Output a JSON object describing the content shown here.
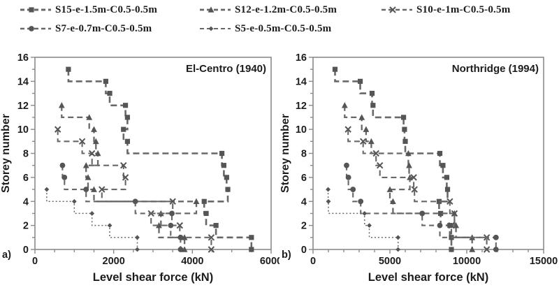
{
  "figure": {
    "colors": {
      "series": "#555555",
      "dash_line": "#686868",
      "axis": "#8a8a8a",
      "text": "#1c1c1c"
    },
    "legend": [
      {
        "label": "S15-e-1.5m-C0.5-0.5m",
        "marker": "square",
        "dash": "9,5",
        "width": 2.6
      },
      {
        "label": "S12-e-1.2m-C0.5-0.5m",
        "marker": "triangle",
        "dash": "8,5",
        "width": 2.3
      },
      {
        "label": "S10-e-1m-C0.5-0.5m",
        "marker": "x",
        "dash": "8,5",
        "width": 2.1
      },
      {
        "label": "S7-e-0.7m-C0.5-0.5m",
        "marker": "circle",
        "dash": "7,5",
        "width": 2.1
      },
      {
        "label": "S5-e-0.5m-C0.5-0.5m",
        "marker": "small-diamond",
        "dash": "2,3",
        "width": 1.5
      }
    ]
  },
  "chart_data": [
    {
      "type": "line",
      "subtype": "step-storey-shear-profile",
      "panel_label": "a)",
      "annotation": "El-Centro (1940)",
      "xlabel": "Level shear force (kN)",
      "ylabel": "Storey number",
      "xlim": [
        0,
        6000
      ],
      "xticks": [
        0,
        2000,
        4000,
        6000
      ],
      "xminor_step": 500,
      "ylim": [
        0,
        16
      ],
      "yticks": [
        0,
        2,
        4,
        6,
        8,
        10,
        12,
        14,
        16
      ],
      "yminor_step": 1,
      "grid": false,
      "legend_position": "top-outside",
      "series": [
        {
          "name": "S15-e-1.5m-C0.5-0.5m",
          "top_storey": 15,
          "values_top_to_1": [
            850,
            1800,
            1900,
            2300,
            2350,
            2250,
            2350,
            4750,
            4800,
            4870,
            4900,
            4300,
            4350,
            4600,
            5500
          ]
        },
        {
          "name": "S12-e-1.2m-C0.5-0.5m",
          "top_storey": 12,
          "values_top_to_1": [
            680,
            1380,
            1500,
            1550,
            1600,
            1300,
            1350,
            1500,
            4100,
            3200,
            3150,
            3800
          ]
        },
        {
          "name": "S10-e-1m-C0.5-0.5m",
          "top_storey": 10,
          "values_top_to_1": [
            580,
            1200,
            1450,
            2250,
            2300,
            1700,
            3500,
            2950,
            3680,
            4480
          ]
        },
        {
          "name": "S7-e-0.7m-C0.5-0.5m",
          "top_storey": 7,
          "values_top_to_1": [
            700,
            750,
            1300,
            2550,
            3480,
            3450,
            3700
          ]
        },
        {
          "name": "S5-e-0.5m-C0.5-0.5m",
          "top_storey": 5,
          "values_top_to_1": [
            300,
            1000,
            1450,
            1900,
            2600
          ]
        }
      ]
    },
    {
      "type": "line",
      "subtype": "step-storey-shear-profile",
      "panel_label": "b)",
      "annotation": "Northridge (1994)",
      "xlabel": "Level shear force (kN)",
      "ylabel": "Storey number",
      "xlim": [
        0,
        15000
      ],
      "xticks": [
        0,
        5000,
        10000,
        15000
      ],
      "xminor_step": 1000,
      "ylim": [
        0,
        16
      ],
      "yticks": [
        0,
        2,
        4,
        6,
        8,
        10,
        12,
        14,
        16
      ],
      "yminor_step": 1,
      "grid": false,
      "legend_position": "top-outside",
      "series": [
        {
          "name": "S15-e-1.5m-C0.5-0.5m",
          "top_storey": 15,
          "values_top_to_1": [
            1430,
            3070,
            3840,
            3900,
            5890,
            5950,
            6000,
            8250,
            8450,
            8700,
            8750,
            8200,
            8300,
            8900,
            9000
          ]
        },
        {
          "name": "S12-e-1.2m-C0.5-0.5m",
          "top_storey": 12,
          "values_top_to_1": [
            2060,
            3170,
            3450,
            3790,
            6200,
            6250,
            6300,
            5000,
            5200,
            9200,
            9300,
            10350
          ]
        },
        {
          "name": "S10-e-1m-C0.5-0.5m",
          "top_storey": 10,
          "values_top_to_1": [
            2280,
            3260,
            4100,
            4350,
            6550,
            6600,
            8900,
            9200,
            9000,
            11300
          ]
        },
        {
          "name": "S7-e-0.7m-C0.5-0.5m",
          "top_storey": 7,
          "values_top_to_1": [
            2180,
            2300,
            2600,
            3100,
            7100,
            8250,
            11900
          ]
        },
        {
          "name": "S5-e-0.5m-C0.5-0.5m",
          "top_storey": 5,
          "values_top_to_1": [
            980,
            1000,
            3350,
            3660,
            5530
          ]
        }
      ]
    }
  ]
}
